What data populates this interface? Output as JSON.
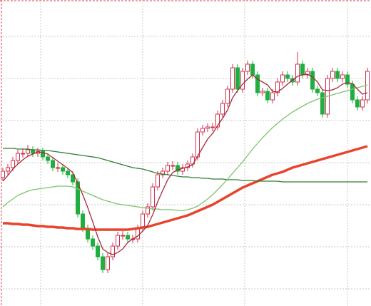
{
  "chart_data": {
    "type": "candlestick",
    "ylim": [
      0,
      429
    ],
    "yticks": [
      24,
      83,
      142,
      201,
      260,
      319,
      378
    ],
    "grid": true,
    "up_color": "#d0304e",
    "down_color": "#1fae3f",
    "candles": {
      "open": [
        180,
        189,
        194,
        204,
        214,
        214,
        219,
        214,
        217,
        209,
        204,
        194,
        194,
        189,
        184,
        174,
        129,
        109,
        94,
        84,
        69,
        51,
        69,
        84,
        99,
        99,
        94,
        94,
        109,
        129,
        139,
        167,
        184,
        189,
        197,
        197,
        189,
        194,
        199,
        209,
        244,
        249,
        251,
        251,
        269,
        284,
        304,
        334,
        304,
        329,
        339,
        324,
        299,
        301,
        289,
        299,
        314,
        324,
        319,
        314,
        339,
        324,
        329,
        304,
        299,
        269,
        319,
        329,
        319,
        324,
        311,
        289,
        279,
        289
      ],
      "high": [
        194,
        199,
        209,
        219,
        221,
        226,
        224,
        222,
        222,
        214,
        209,
        200,
        199,
        194,
        189,
        179,
        134,
        114,
        99,
        89,
        74,
        74,
        89,
        104,
        105,
        104,
        100,
        114,
        134,
        144,
        172,
        189,
        194,
        202,
        203,
        202,
        199,
        204,
        214,
        249,
        254,
        256,
        257,
        274,
        289,
        309,
        339,
        339,
        334,
        344,
        344,
        329,
        306,
        306,
        304,
        319,
        329,
        329,
        324,
        356,
        344,
        334,
        334,
        309,
        304,
        324,
        334,
        334,
        329,
        329,
        316,
        294,
        294,
        334
      ],
      "low": [
        175,
        184,
        189,
        199,
        208,
        209,
        209,
        209,
        204,
        199,
        189,
        188,
        184,
        179,
        169,
        124,
        104,
        89,
        79,
        64,
        46,
        46,
        64,
        79,
        93,
        89,
        88,
        89,
        104,
        124,
        134,
        162,
        179,
        184,
        191,
        184,
        184,
        189,
        194,
        204,
        239,
        244,
        245,
        246,
        264,
        279,
        299,
        299,
        299,
        324,
        319,
        294,
        294,
        284,
        284,
        294,
        309,
        314,
        309,
        309,
        319,
        319,
        299,
        294,
        264,
        264,
        314,
        314,
        314,
        306,
        284,
        274,
        274,
        284
      ],
      "close": [
        189,
        194,
        204,
        214,
        214,
        219,
        214,
        217,
        209,
        204,
        194,
        194,
        189,
        184,
        174,
        129,
        109,
        94,
        84,
        69,
        51,
        69,
        84,
        99,
        99,
        94,
        94,
        109,
        129,
        139,
        167,
        184,
        189,
        197,
        197,
        189,
        194,
        199,
        209,
        244,
        249,
        251,
        251,
        269,
        284,
        304,
        334,
        304,
        329,
        339,
        324,
        299,
        301,
        289,
        299,
        314,
        324,
        319,
        314,
        339,
        324,
        329,
        304,
        299,
        269,
        319,
        329,
        319,
        324,
        311,
        289,
        279,
        289,
        329
      ]
    },
    "lines": [
      {
        "color": "#e8432b",
        "width": 3.5,
        "values": [
          116,
          116,
          115,
          115,
          114,
          114,
          113,
          112,
          112,
          111,
          111,
          110,
          110,
          109,
          109,
          108,
          108,
          108,
          107,
          107,
          107,
          107,
          107,
          107,
          107,
          107,
          108,
          109,
          110,
          111,
          113,
          115,
          117,
          119,
          121,
          123,
          125,
          127,
          130,
          133,
          136,
          139,
          142,
          146,
          150,
          154,
          158,
          162,
          166,
          169,
          172,
          175,
          178,
          181,
          184,
          186,
          188,
          191,
          194,
          196,
          198,
          200,
          202,
          204,
          206,
          208,
          210,
          212,
          214,
          216,
          218,
          220,
          222,
          224
        ]
      },
      {
        "color": "#2e7d32",
        "width": 1.3,
        "values": [
          221,
          221,
          221,
          220,
          220,
          220,
          219,
          219,
          218,
          218,
          217,
          216,
          215,
          214,
          213,
          212,
          211,
          210,
          209,
          208,
          206,
          204,
          202,
          200,
          198,
          196,
          194,
          193,
          192,
          190,
          188,
          186,
          185,
          184,
          183,
          182,
          181,
          181,
          180,
          180,
          179,
          179,
          178,
          178,
          178,
          177,
          177,
          177,
          176,
          176,
          176,
          175,
          175,
          175,
          175,
          175,
          174,
          174,
          174,
          174,
          174,
          174,
          174,
          174,
          174,
          174,
          174,
          174,
          174,
          174,
          174,
          174,
          174,
          174
        ]
      },
      {
        "color": "#7cc46a",
        "width": 1.3,
        "values": [
          139,
          145,
          150,
          155,
          158,
          161,
          163,
          164,
          165,
          166,
          167,
          168,
          168,
          168,
          167,
          164,
          161,
          158,
          155,
          152,
          149,
          147,
          145,
          143,
          142,
          141,
          140,
          139,
          138,
          137,
          136,
          136,
          135,
          135,
          135,
          134,
          134,
          135,
          137,
          140,
          145,
          150,
          156,
          163,
          170,
          178,
          186,
          194,
          202,
          211,
          220,
          228,
          236,
          243,
          250,
          256,
          262,
          267,
          272,
          276,
          280,
          284,
          287,
          290,
          292,
          294,
          296,
          298,
          300,
          302,
          304,
          306,
          308,
          310
        ]
      },
      {
        "color": "#a8283a",
        "width": 1.3,
        "values": [
          175,
          183,
          192,
          199,
          205,
          210,
          213,
          216,
          215,
          213,
          208,
          203,
          198,
          193,
          187,
          172,
          156,
          138,
          118,
          97,
          80,
          75,
          72,
          75,
          80,
          89,
          94,
          98,
          105,
          113,
          128,
          146,
          162,
          177,
          187,
          191,
          193,
          195,
          198,
          210,
          222,
          234,
          242,
          253,
          263,
          275,
          292,
          302,
          311,
          318,
          324,
          318,
          314,
          310,
          301,
          300,
          305,
          311,
          317,
          322,
          324,
          325,
          321,
          314,
          303,
          302,
          303,
          306,
          311,
          313,
          312,
          304,
          297,
          299
        ]
      }
    ]
  }
}
